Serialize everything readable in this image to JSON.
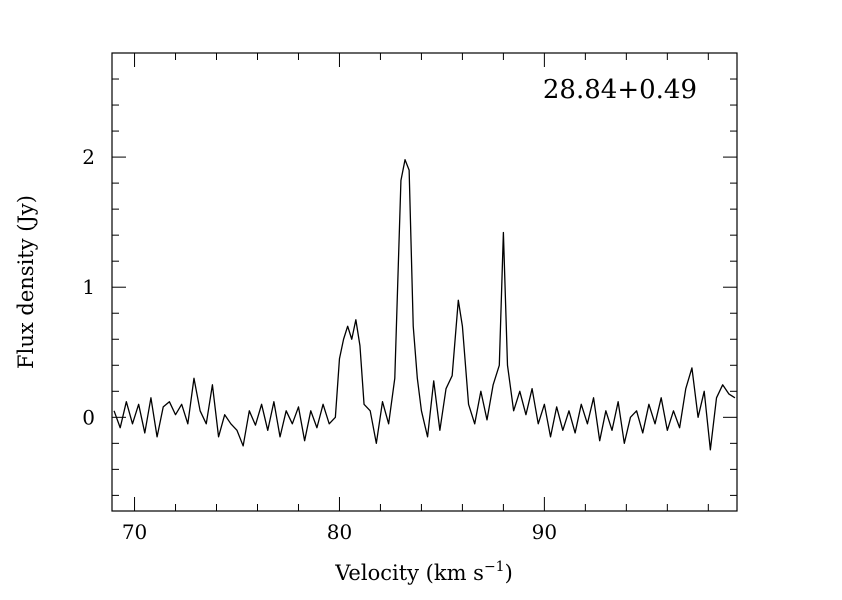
{
  "chart_data": {
    "type": "line",
    "title": "28.84+0.49",
    "xlabel": "Velocity (km s",
    "xlabel_sup": "−1",
    "xlabel_tail": ")",
    "ylabel": "Flux density (Jy)",
    "xlim": [
      68.9,
      99.4
    ],
    "ylim": [
      -0.72,
      2.8
    ],
    "xticks": [
      70,
      80,
      90
    ],
    "xtick_labels": [
      "70",
      "80",
      "90"
    ],
    "yticks": [
      0,
      1,
      2
    ],
    "ytick_labels": [
      "0",
      "1",
      "2"
    ],
    "x_minor_step": 2,
    "y_minor_step": 0.2,
    "grid": false,
    "line_color": "#000000",
    "series": [
      {
        "points": [
          [
            69.0,
            0.05
          ],
          [
            69.3,
            -0.08
          ],
          [
            69.6,
            0.12
          ],
          [
            69.9,
            -0.05
          ],
          [
            70.2,
            0.1
          ],
          [
            70.5,
            -0.12
          ],
          [
            70.8,
            0.15
          ],
          [
            71.1,
            -0.15
          ],
          [
            71.4,
            0.08
          ],
          [
            71.7,
            0.12
          ],
          [
            72.0,
            0.02
          ],
          [
            72.3,
            0.1
          ],
          [
            72.6,
            -0.05
          ],
          [
            72.9,
            0.3
          ],
          [
            73.2,
            0.05
          ],
          [
            73.5,
            -0.05
          ],
          [
            73.8,
            0.25
          ],
          [
            74.1,
            -0.15
          ],
          [
            74.4,
            0.02
          ],
          [
            74.7,
            -0.05
          ],
          [
            75.0,
            -0.1
          ],
          [
            75.3,
            -0.22
          ],
          [
            75.6,
            0.05
          ],
          [
            75.9,
            -0.06
          ],
          [
            76.2,
            0.1
          ],
          [
            76.5,
            -0.1
          ],
          [
            76.8,
            0.12
          ],
          [
            77.1,
            -0.15
          ],
          [
            77.4,
            0.05
          ],
          [
            77.7,
            -0.05
          ],
          [
            78.0,
            0.08
          ],
          [
            78.3,
            -0.18
          ],
          [
            78.6,
            0.05
          ],
          [
            78.9,
            -0.08
          ],
          [
            79.2,
            0.1
          ],
          [
            79.5,
            -0.05
          ],
          [
            79.8,
            0.0
          ],
          [
            80.0,
            0.45
          ],
          [
            80.2,
            0.6
          ],
          [
            80.4,
            0.7
          ],
          [
            80.6,
            0.6
          ],
          [
            80.8,
            0.75
          ],
          [
            81.0,
            0.55
          ],
          [
            81.2,
            0.1
          ],
          [
            81.5,
            0.05
          ],
          [
            81.8,
            -0.2
          ],
          [
            82.1,
            0.12
          ],
          [
            82.4,
            -0.05
          ],
          [
            82.7,
            0.3
          ],
          [
            83.0,
            1.82
          ],
          [
            83.2,
            1.98
          ],
          [
            83.4,
            1.9
          ],
          [
            83.6,
            0.7
          ],
          [
            83.8,
            0.3
          ],
          [
            84.0,
            0.05
          ],
          [
            84.3,
            -0.15
          ],
          [
            84.6,
            0.28
          ],
          [
            84.9,
            -0.1
          ],
          [
            85.2,
            0.22
          ],
          [
            85.5,
            0.32
          ],
          [
            85.8,
            0.9
          ],
          [
            86.0,
            0.7
          ],
          [
            86.3,
            0.1
          ],
          [
            86.6,
            -0.05
          ],
          [
            86.9,
            0.2
          ],
          [
            87.2,
            -0.02
          ],
          [
            87.5,
            0.25
          ],
          [
            87.8,
            0.4
          ],
          [
            88.0,
            1.42
          ],
          [
            88.2,
            0.4
          ],
          [
            88.5,
            0.05
          ],
          [
            88.8,
            0.2
          ],
          [
            89.1,
            0.02
          ],
          [
            89.4,
            0.22
          ],
          [
            89.7,
            -0.05
          ],
          [
            90.0,
            0.1
          ],
          [
            90.3,
            -0.15
          ],
          [
            90.6,
            0.08
          ],
          [
            90.9,
            -0.1
          ],
          [
            91.2,
            0.05
          ],
          [
            91.5,
            -0.12
          ],
          [
            91.8,
            0.1
          ],
          [
            92.1,
            -0.05
          ],
          [
            92.4,
            0.15
          ],
          [
            92.7,
            -0.18
          ],
          [
            93.0,
            0.05
          ],
          [
            93.3,
            -0.1
          ],
          [
            93.6,
            0.12
          ],
          [
            93.9,
            -0.2
          ],
          [
            94.2,
            0.0
          ],
          [
            94.5,
            0.05
          ],
          [
            94.8,
            -0.12
          ],
          [
            95.1,
            0.1
          ],
          [
            95.4,
            -0.05
          ],
          [
            95.7,
            0.15
          ],
          [
            96.0,
            -0.1
          ],
          [
            96.3,
            0.05
          ],
          [
            96.6,
            -0.08
          ],
          [
            96.9,
            0.22
          ],
          [
            97.2,
            0.38
          ],
          [
            97.5,
            0.0
          ],
          [
            97.8,
            0.2
          ],
          [
            98.1,
            -0.25
          ],
          [
            98.4,
            0.15
          ],
          [
            98.7,
            0.25
          ],
          [
            99.0,
            0.18
          ],
          [
            99.3,
            0.15
          ]
        ]
      }
    ]
  }
}
